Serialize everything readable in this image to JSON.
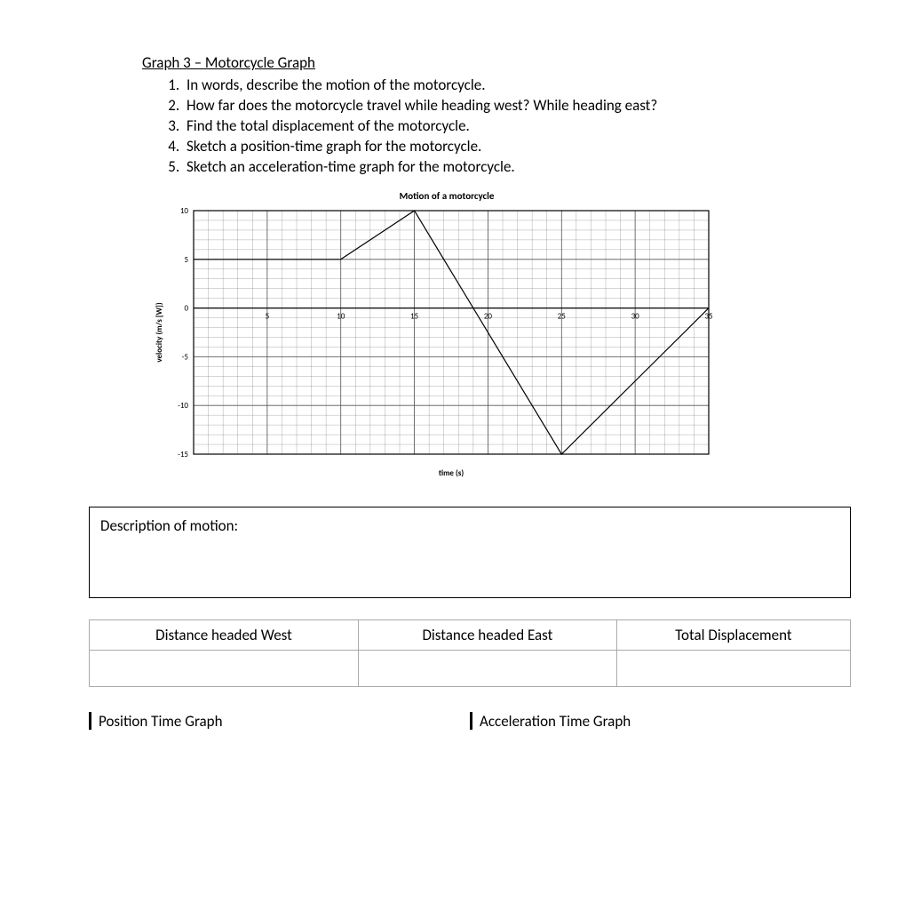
{
  "heading": "Graph 3 – Motorcycle Graph",
  "questions": [
    "In words, describe the motion of the motorcycle.",
    "How far does the motorcycle travel while heading west? While heading east?",
    "Find the total displacement of the motorcycle.",
    "Sketch a position-time graph for the motorcycle.",
    "Sketch an acceleration-time graph for the motorcycle."
  ],
  "chart": {
    "title": "Motion of a motorcycle",
    "xlabel": "time (s)",
    "ylabel": "velocity (m/s [W])",
    "x_min": 0,
    "x_max": 35,
    "y_min": -15,
    "y_max": 10,
    "x_major_ticks": [
      0,
      5,
      10,
      15,
      20,
      25,
      30,
      35
    ],
    "y_major_ticks": [
      -15,
      -10,
      -5,
      0,
      5,
      10
    ],
    "x_minor_step": 1,
    "y_minor_step": 1,
    "grid_color": "#555555",
    "line_color": "#000000",
    "background_color": "#ffffff",
    "line_width": 1.2,
    "font_size_axis": 9,
    "font_size_label": 9,
    "polyline": [
      [
        0,
        5
      ],
      [
        10,
        5
      ],
      [
        15,
        10
      ],
      [
        25,
        -15
      ],
      [
        35,
        0
      ]
    ]
  },
  "description_label": "Description of motion:",
  "table": {
    "headers": [
      "Distance headed West",
      "Distance headed East",
      "Total Displacement"
    ],
    "rows": [
      [
        "",
        "",
        ""
      ]
    ]
  },
  "bottom_left": "Position Time Graph",
  "bottom_right": "Acceleration Time Graph"
}
